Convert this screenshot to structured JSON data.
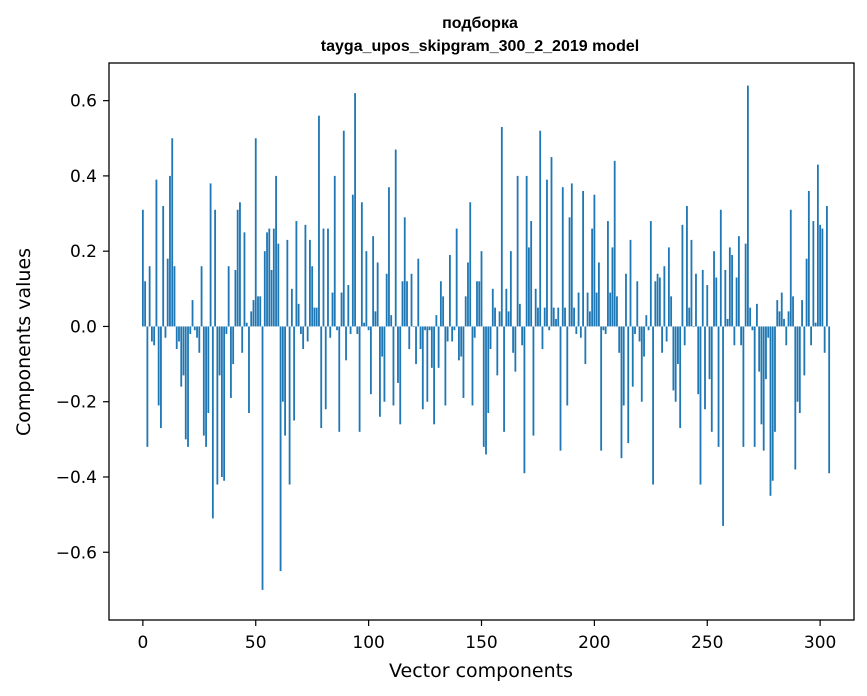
{
  "chart_data": {
    "type": "bar",
    "title_line1": "подборка",
    "title_line2": "tayga_upos_skipgram_300_2_2019 model",
    "xlabel": "Vector components",
    "ylabel": "Components values",
    "xlim": [
      -15,
      315
    ],
    "ylim": [
      -0.78,
      0.7
    ],
    "xticks": [
      0,
      50,
      100,
      150,
      200,
      250,
      300
    ],
    "xtick_labels": [
      "0",
      "50",
      "100",
      "150",
      "200",
      "250",
      "300"
    ],
    "yticks": [
      -0.6,
      -0.4,
      -0.2,
      0.0,
      0.2,
      0.4,
      0.6
    ],
    "ytick_labels": [
      "−0.6",
      "−0.4",
      "−0.2",
      "0.0",
      "0.2",
      "0.4",
      "0.6"
    ],
    "bar_color": "#1f77b4",
    "values": [
      0.31,
      0.12,
      -0.32,
      0.16,
      -0.04,
      -0.05,
      0.39,
      -0.21,
      -0.27,
      0.32,
      -0.03,
      0.18,
      0.4,
      0.5,
      0.16,
      -0.06,
      -0.04,
      -0.16,
      -0.13,
      -0.3,
      -0.32,
      -0.02,
      0.07,
      -0.01,
      -0.03,
      -0.07,
      0.16,
      -0.29,
      -0.32,
      -0.23,
      0.38,
      -0.51,
      0.31,
      -0.42,
      -0.13,
      -0.4,
      -0.41,
      -0.02,
      0.16,
      -0.19,
      -0.1,
      0.15,
      0.31,
      0.33,
      -0.07,
      0.25,
      0.01,
      -0.23,
      0.04,
      0.07,
      0.5,
      0.08,
      0.08,
      -0.7,
      0.2,
      0.25,
      0.26,
      0.15,
      0.26,
      0.4,
      0.22,
      -0.65,
      -0.2,
      -0.29,
      0.23,
      -0.42,
      0.1,
      -0.25,
      0.28,
      0.06,
      -0.02,
      -0.06,
      0.27,
      -0.04,
      0.23,
      0.16,
      0.05,
      0.05,
      0.56,
      -0.27,
      0.26,
      -0.22,
      0.26,
      -0.03,
      0.09,
      0.4,
      -0.01,
      -0.28,
      0.09,
      0.52,
      -0.09,
      0.11,
      -0.02,
      0.35,
      0.62,
      -0.02,
      -0.28,
      0.33,
      0.01,
      0.2,
      -0.01,
      -0.18,
      0.24,
      0.04,
      0.17,
      -0.24,
      -0.08,
      -0.2,
      0.14,
      0.37,
      0.03,
      -0.21,
      0.47,
      -0.15,
      -0.26,
      0.12,
      0.29,
      0.12,
      -0.06,
      0.14,
      0.0,
      -0.1,
      0.18,
      -0.06,
      -0.22,
      -0.01,
      -0.2,
      -0.01,
      -0.11,
      -0.26,
      0.03,
      -0.11,
      0.12,
      0.08,
      -0.21,
      -0.04,
      0.19,
      -0.04,
      -0.01,
      0.26,
      -0.09,
      -0.08,
      -0.19,
      0.08,
      0.17,
      0.33,
      -0.21,
      -0.03,
      0.12,
      0.12,
      0.2,
      -0.32,
      -0.34,
      -0.23,
      -0.06,
      0.1,
      0.05,
      -0.13,
      0.04,
      0.53,
      -0.28,
      0.1,
      0.04,
      0.2,
      -0.07,
      -0.12,
      0.4,
      0.06,
      -0.05,
      -0.39,
      0.4,
      0.21,
      0.28,
      -0.29,
      0.1,
      0.05,
      0.52,
      -0.06,
      0.05,
      0.39,
      -0.01,
      0.45,
      0.05,
      0.02,
      0.05,
      -0.33,
      0.37,
      0.05,
      -0.21,
      0.29,
      0.38,
      0.05,
      -0.02,
      0.09,
      -0.03,
      0.36,
      -0.1,
      0.09,
      0.04,
      0.26,
      0.35,
      0.09,
      0.17,
      -0.33,
      -0.01,
      -0.02,
      0.28,
      0.09,
      0.21,
      0.44,
      0.08,
      -0.07,
      -0.35,
      -0.21,
      0.14,
      -0.31,
      0.23,
      -0.16,
      -0.02,
      0.12,
      -0.04,
      -0.2,
      -0.08,
      0.03,
      -0.01,
      0.28,
      -0.42,
      0.12,
      0.14,
      0.13,
      -0.07,
      0.16,
      -0.04,
      0.21,
      0.08,
      -0.17,
      -0.2,
      -0.1,
      -0.27,
      0.27,
      -0.05,
      0.32,
      0.05,
      0.23,
      0.0,
      0.14,
      -0.18,
      -0.42,
      0.15,
      -0.22,
      0.11,
      -0.14,
      -0.28,
      0.2,
      0.13,
      -0.32,
      0.31,
      -0.53,
      0.15,
      0.02,
      0.21,
      0.19,
      -0.05,
      0.13,
      0.24,
      -0.05,
      -0.32,
      0.22,
      0.64,
      0.05,
      -0.01,
      -0.32,
      0.06,
      -0.12,
      -0.26,
      -0.33,
      -0.14,
      -0.03,
      -0.45,
      -0.41,
      -0.28,
      0.07,
      0.04,
      0.09,
      0.02,
      -0.05,
      0.04,
      0.31,
      0.08,
      -0.38,
      -0.2,
      -0.23,
      0.07,
      -0.13,
      0.18,
      0.36,
      -0.05,
      0.28,
      0.01,
      0.43,
      0.27,
      0.26,
      -0.07,
      0.32,
      -0.39
    ]
  }
}
